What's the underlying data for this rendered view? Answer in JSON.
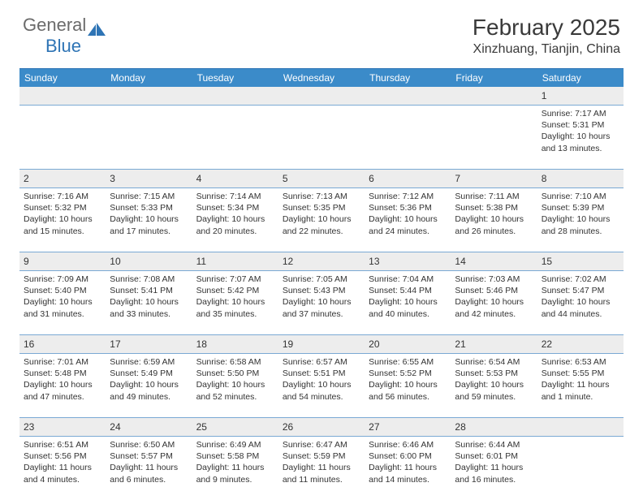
{
  "colors": {
    "accent": "#3b8bc9",
    "accent_dark": "#2e74b5",
    "grid_line": "#7aa9d4",
    "date_bg": "#ededed",
    "text": "#333333",
    "logo_gray": "#6b6b6b",
    "background": "#ffffff"
  },
  "logo": {
    "part1": "General",
    "part2": "Blue"
  },
  "title": "February 2025",
  "location": "Xinzhuang, Tianjin, China",
  "day_names": [
    "Sunday",
    "Monday",
    "Tuesday",
    "Wednesday",
    "Thursday",
    "Friday",
    "Saturday"
  ],
  "layout": {
    "columns": 7,
    "rows": 5,
    "first_day_column": 6,
    "font_family": "Arial",
    "title_fontsize_pt": 21,
    "location_fontsize_pt": 12,
    "header_fontsize_pt": 9,
    "datenum_fontsize_pt": 9,
    "detail_fontsize_pt": 8
  },
  "days": [
    {
      "n": "1",
      "sunrise": "7:17 AM",
      "sunset": "5:31 PM",
      "daylight": "10 hours and 13 minutes."
    },
    {
      "n": "2",
      "sunrise": "7:16 AM",
      "sunset": "5:32 PM",
      "daylight": "10 hours and 15 minutes."
    },
    {
      "n": "3",
      "sunrise": "7:15 AM",
      "sunset": "5:33 PM",
      "daylight": "10 hours and 17 minutes."
    },
    {
      "n": "4",
      "sunrise": "7:14 AM",
      "sunset": "5:34 PM",
      "daylight": "10 hours and 20 minutes."
    },
    {
      "n": "5",
      "sunrise": "7:13 AM",
      "sunset": "5:35 PM",
      "daylight": "10 hours and 22 minutes."
    },
    {
      "n": "6",
      "sunrise": "7:12 AM",
      "sunset": "5:36 PM",
      "daylight": "10 hours and 24 minutes."
    },
    {
      "n": "7",
      "sunrise": "7:11 AM",
      "sunset": "5:38 PM",
      "daylight": "10 hours and 26 minutes."
    },
    {
      "n": "8",
      "sunrise": "7:10 AM",
      "sunset": "5:39 PM",
      "daylight": "10 hours and 28 minutes."
    },
    {
      "n": "9",
      "sunrise": "7:09 AM",
      "sunset": "5:40 PM",
      "daylight": "10 hours and 31 minutes."
    },
    {
      "n": "10",
      "sunrise": "7:08 AM",
      "sunset": "5:41 PM",
      "daylight": "10 hours and 33 minutes."
    },
    {
      "n": "11",
      "sunrise": "7:07 AM",
      "sunset": "5:42 PM",
      "daylight": "10 hours and 35 minutes."
    },
    {
      "n": "12",
      "sunrise": "7:05 AM",
      "sunset": "5:43 PM",
      "daylight": "10 hours and 37 minutes."
    },
    {
      "n": "13",
      "sunrise": "7:04 AM",
      "sunset": "5:44 PM",
      "daylight": "10 hours and 40 minutes."
    },
    {
      "n": "14",
      "sunrise": "7:03 AM",
      "sunset": "5:46 PM",
      "daylight": "10 hours and 42 minutes."
    },
    {
      "n": "15",
      "sunrise": "7:02 AM",
      "sunset": "5:47 PM",
      "daylight": "10 hours and 44 minutes."
    },
    {
      "n": "16",
      "sunrise": "7:01 AM",
      "sunset": "5:48 PM",
      "daylight": "10 hours and 47 minutes."
    },
    {
      "n": "17",
      "sunrise": "6:59 AM",
      "sunset": "5:49 PM",
      "daylight": "10 hours and 49 minutes."
    },
    {
      "n": "18",
      "sunrise": "6:58 AM",
      "sunset": "5:50 PM",
      "daylight": "10 hours and 52 minutes."
    },
    {
      "n": "19",
      "sunrise": "6:57 AM",
      "sunset": "5:51 PM",
      "daylight": "10 hours and 54 minutes."
    },
    {
      "n": "20",
      "sunrise": "6:55 AM",
      "sunset": "5:52 PM",
      "daylight": "10 hours and 56 minutes."
    },
    {
      "n": "21",
      "sunrise": "6:54 AM",
      "sunset": "5:53 PM",
      "daylight": "10 hours and 59 minutes."
    },
    {
      "n": "22",
      "sunrise": "6:53 AM",
      "sunset": "5:55 PM",
      "daylight": "11 hours and 1 minute."
    },
    {
      "n": "23",
      "sunrise": "6:51 AM",
      "sunset": "5:56 PM",
      "daylight": "11 hours and 4 minutes."
    },
    {
      "n": "24",
      "sunrise": "6:50 AM",
      "sunset": "5:57 PM",
      "daylight": "11 hours and 6 minutes."
    },
    {
      "n": "25",
      "sunrise": "6:49 AM",
      "sunset": "5:58 PM",
      "daylight": "11 hours and 9 minutes."
    },
    {
      "n": "26",
      "sunrise": "6:47 AM",
      "sunset": "5:59 PM",
      "daylight": "11 hours and 11 minutes."
    },
    {
      "n": "27",
      "sunrise": "6:46 AM",
      "sunset": "6:00 PM",
      "daylight": "11 hours and 14 minutes."
    },
    {
      "n": "28",
      "sunrise": "6:44 AM",
      "sunset": "6:01 PM",
      "daylight": "11 hours and 16 minutes."
    }
  ],
  "labels": {
    "sunrise": "Sunrise:",
    "sunset": "Sunset:",
    "daylight": "Daylight:"
  }
}
